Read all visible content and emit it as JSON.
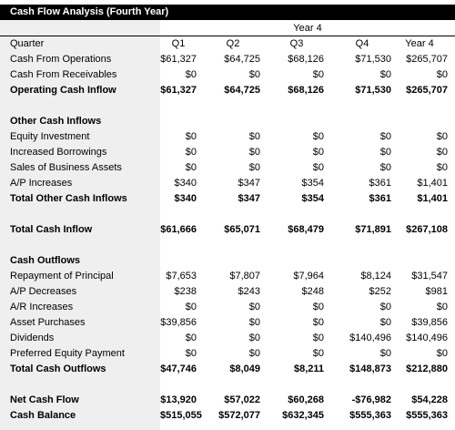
{
  "title": "Cash Flow Analysis (Fourth Year)",
  "year_label": "Year 4",
  "header": {
    "label": "Quarter",
    "cols": [
      "Q1",
      "Q2",
      "Q3",
      "Q4",
      "Year 4"
    ]
  },
  "rows": [
    {
      "label": "Cash From Operations",
      "values": [
        "$61,327",
        "$64,725",
        "$68,126",
        "$71,530",
        "$265,707"
      ],
      "bold": false
    },
    {
      "label": "Cash From Receivables",
      "values": [
        "$0",
        "$0",
        "$0",
        "$0",
        "$0"
      ],
      "bold": false
    },
    {
      "label": "Operating Cash Inflow",
      "values": [
        "$61,327",
        "$64,725",
        "$68,126",
        "$71,530",
        "$265,707"
      ],
      "bold": true
    },
    {
      "label": "",
      "values": [
        "",
        "",
        "",
        "",
        ""
      ],
      "bold": false
    },
    {
      "label": "Other Cash Inflows",
      "values": [
        "",
        "",
        "",
        "",
        ""
      ],
      "bold": true
    },
    {
      "label": "Equity Investment",
      "values": [
        "$0",
        "$0",
        "$0",
        "$0",
        "$0"
      ],
      "bold": false
    },
    {
      "label": "Increased Borrowings",
      "values": [
        "$0",
        "$0",
        "$0",
        "$0",
        "$0"
      ],
      "bold": false
    },
    {
      "label": "Sales of Business Assets",
      "values": [
        "$0",
        "$0",
        "$0",
        "$0",
        "$0"
      ],
      "bold": false
    },
    {
      "label": "A/P Increases",
      "values": [
        "$340",
        "$347",
        "$354",
        "$361",
        "$1,401"
      ],
      "bold": false
    },
    {
      "label": "Total Other Cash Inflows",
      "values": [
        "$340",
        "$347",
        "$354",
        "$361",
        "$1,401"
      ],
      "bold": true
    },
    {
      "label": "",
      "values": [
        "",
        "",
        "",
        "",
        ""
      ],
      "bold": false
    },
    {
      "label": "Total Cash Inflow",
      "values": [
        "$61,666",
        "$65,071",
        "$68,479",
        "$71,891",
        "$267,108"
      ],
      "bold": true
    },
    {
      "label": "",
      "values": [
        "",
        "",
        "",
        "",
        ""
      ],
      "bold": false
    },
    {
      "label": "Cash Outflows",
      "values": [
        "",
        "",
        "",
        "",
        ""
      ],
      "bold": true
    },
    {
      "label": "Repayment of Principal",
      "values": [
        "$7,653",
        "$7,807",
        "$7,964",
        "$8,124",
        "$31,547"
      ],
      "bold": false
    },
    {
      "label": "A/P Decreases",
      "values": [
        "$238",
        "$243",
        "$248",
        "$252",
        "$981"
      ],
      "bold": false
    },
    {
      "label": "A/R Increases",
      "values": [
        "$0",
        "$0",
        "$0",
        "$0",
        "$0"
      ],
      "bold": false
    },
    {
      "label": "Asset Purchases",
      "values": [
        "$39,856",
        "$0",
        "$0",
        "$0",
        "$39,856"
      ],
      "bold": false
    },
    {
      "label": "Dividends",
      "values": [
        "$0",
        "$0",
        "$0",
        "$140,496",
        "$140,496"
      ],
      "bold": false
    },
    {
      "label": "Preferred Equity Payment",
      "values": [
        "$0",
        "$0",
        "$0",
        "$0",
        "$0"
      ],
      "bold": false
    },
    {
      "label": "Total Cash Outflows",
      "values": [
        "$47,746",
        "$8,049",
        "$8,211",
        "$148,873",
        "$212,880"
      ],
      "bold": true
    },
    {
      "label": "",
      "values": [
        "",
        "",
        "",
        "",
        ""
      ],
      "bold": false
    },
    {
      "label": "Net Cash Flow",
      "values": [
        "$13,920",
        "$57,022",
        "$60,268",
        "-$76,982",
        "$54,228"
      ],
      "bold": true
    },
    {
      "label": "Cash Balance",
      "values": [
        "$515,055",
        "$572,077",
        "$632,345",
        "$555,363",
        "$555,363"
      ],
      "bold": true
    }
  ]
}
